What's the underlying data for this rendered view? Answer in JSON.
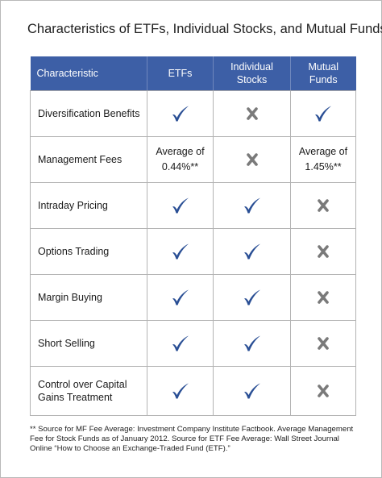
{
  "title": "Characteristics of ETFs, Individual Stocks, and Mutual Funds",
  "headers": [
    "Characteristic",
    "ETFs",
    "Individual\nStocks",
    "Mutual\nFunds"
  ],
  "check_icon": "check-icon",
  "cross_icon": "cross-icon",
  "check_color": "#2a4f95",
  "cross_color": "#7a7a7a",
  "header_color": "#3d5fa6",
  "rows": [
    {
      "label": "Diversification Benefits",
      "etfs": "check",
      "stocks": "cross",
      "funds": "check"
    },
    {
      "label": "Management Fees",
      "etfs": "Average of\n0.44%**",
      "stocks": "cross",
      "funds": "Average of\n1.45%**"
    },
    {
      "label": "Intraday Pricing",
      "etfs": "check",
      "stocks": "check",
      "funds": "cross"
    },
    {
      "label": "Options Trading",
      "etfs": "check",
      "stocks": "check",
      "funds": "cross"
    },
    {
      "label": "Margin Buying",
      "etfs": "check",
      "stocks": "check",
      "funds": "cross"
    },
    {
      "label": "Short Selling",
      "etfs": "check",
      "stocks": "check",
      "funds": "cross"
    },
    {
      "label": "Control over Capital\nGains Treatment",
      "etfs": "check",
      "stocks": "check",
      "funds": "cross"
    }
  ],
  "footnote": "** Source for MF Fee Average: Investment Company Institute Factbook.  Average Management Fee for Stock Funds as of January 2012.  Source for ETF Fee Average: Wall Street Journal Online “How to Choose an Exchange-Traded Fund (ETF).”"
}
